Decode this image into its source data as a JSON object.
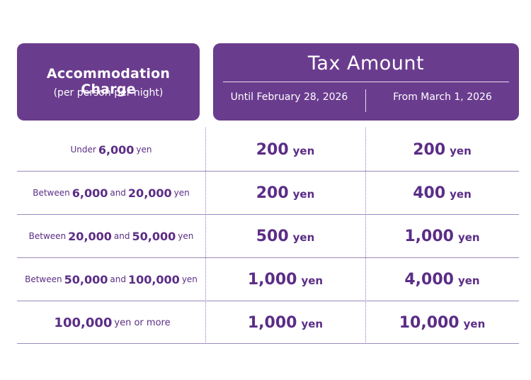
{
  "header": {
    "charge_title": "Accommodation Charge",
    "charge_subtitle": "(per person per night)",
    "tax_title": "Tax Amount",
    "col_until": "Until February 28, 2026",
    "col_from": "From March 1, 2026"
  },
  "rows": [
    {
      "range_pre": "Under",
      "range_a": "6,000",
      "range_mid": "",
      "range_b": "",
      "range_post": "yen",
      "until_value": "200",
      "from_value": "200",
      "unit": "yen"
    },
    {
      "range_pre": "Between",
      "range_a": "6,000",
      "range_mid": "and",
      "range_b": "20,000",
      "range_post": "yen",
      "until_value": "200",
      "from_value": "400",
      "unit": "yen"
    },
    {
      "range_pre": "Between",
      "range_a": "20,000",
      "range_mid": "and",
      "range_b": "50,000",
      "range_post": "yen",
      "until_value": "500",
      "from_value": "1,000",
      "unit": "yen"
    },
    {
      "range_pre": "Between",
      "range_a": "50,000",
      "range_mid": "and",
      "range_b": "100,000",
      "range_post": "yen",
      "until_value": "1,000",
      "from_value": "4,000",
      "unit": "yen"
    },
    {
      "range_pre": "",
      "range_a": "100,000",
      "range_mid": "",
      "range_b": "",
      "range_post": "yen or more",
      "until_value": "1,000",
      "from_value": "10,000",
      "unit": "yen"
    }
  ],
  "colors": {
    "header_bg": "#6a3c8e",
    "text": "#5b2d86",
    "rule": "#9c8bbf"
  }
}
